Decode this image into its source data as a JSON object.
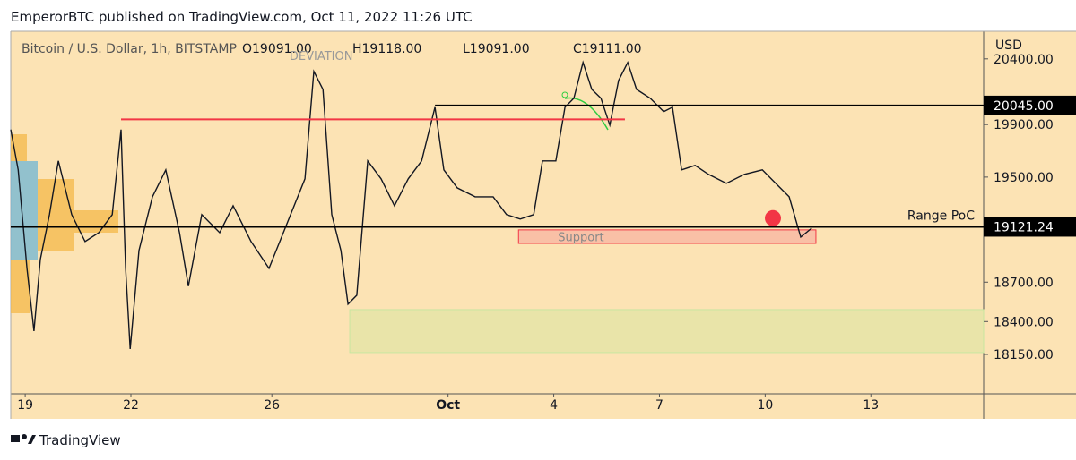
{
  "header": "EmperorBTC published on TradingView.com, Oct 11, 2022 11:26 UTC",
  "footer": "TradingView",
  "chart_data": {
    "type": "line",
    "title": "Bitcoin / U.S. Dollar, 1h, BITSTAMP",
    "ohlc": [
      "O19091.00",
      "H19118.00",
      "L19091.00",
      "C19111.00"
    ],
    "y_axis_label": "USD",
    "color": "#131722",
    "x": [
      -0.41,
      -0.2,
      0.05,
      0.25,
      0.43,
      0.69,
      0.94,
      1.32,
      1.7,
      2.09,
      2.47,
      2.72,
      2.85,
      2.98,
      3.23,
      3.61,
      3.99,
      4.38,
      4.63,
      5.01,
      5.52,
      5.9,
      6.41,
      6.92,
      7.43,
      7.94,
      8.19,
      8.45,
      8.7,
      8.96,
      9.16,
      9.41,
      9.72,
      10.1,
      10.48,
      10.87,
      11.25,
      11.63,
      11.88,
      12.26,
      12.77,
      13.28,
      13.66,
      14.05,
      14.43,
      14.68,
      15.06,
      15.32,
      15.57,
      15.83,
      16.08,
      16.34,
      16.59,
      16.84,
      17.1,
      17.35,
      17.74,
      18.12,
      18.37,
      18.63,
      19.01,
      19.39,
      19.9,
      20.41,
      20.92,
      21.3,
      21.68,
      22.01,
      22.32
    ],
    "values": [
      19862,
      19555,
      18805,
      18328,
      18873,
      19214,
      19623,
      19214,
      19009,
      19077,
      19214,
      19862,
      18805,
      18191,
      18941,
      19350,
      19555,
      19077,
      18669,
      19214,
      19077,
      19282,
      19009,
      18805,
      19146,
      19487,
      20305,
      20168,
      19214,
      18941,
      18532,
      18600,
      19623,
      19487,
      19282,
      19487,
      19623,
      20032,
      19555,
      19418,
      19350,
      19350,
      19214,
      19180,
      19214,
      19623,
      19623,
      20032,
      20100,
      20373,
      20168,
      20100,
      19896,
      20236,
      20373,
      20168,
      20100,
      19998,
      20032,
      19555,
      19589,
      19521,
      19452,
      19521,
      19555,
      19452,
      19350,
      19043,
      19111
    ],
    "xlim": [
      -0.41,
      27.2
    ],
    "ylim": [
      17850,
      20610
    ],
    "xticks": [
      {
        "value": 0,
        "label": "19"
      },
      {
        "value": 3,
        "label": "22"
      },
      {
        "value": 7,
        "label": "26"
      },
      {
        "value": 12,
        "label": "Oct"
      },
      {
        "value": 15,
        "label": "4"
      },
      {
        "value": 18,
        "label": "7"
      },
      {
        "value": 21,
        "label": "10"
      },
      {
        "value": 24,
        "label": "13"
      }
    ],
    "yticks": [
      {
        "value": 20400,
        "label": "20400.00"
      },
      {
        "value": 19900,
        "label": "19900.00"
      },
      {
        "value": 19500,
        "label": "19500.00"
      },
      {
        "value": 18700,
        "label": "18700.00"
      },
      {
        "value": 18400,
        "label": "18400.00"
      },
      {
        "value": 18150,
        "label": "18150.00"
      }
    ],
    "hlines": [
      {
        "value": 20045,
        "label": "20045.00",
        "from": 11.63,
        "color": "#000000"
      },
      {
        "value": 19940,
        "from": 2.72,
        "to": 17.02,
        "color": "#f23645"
      },
      {
        "value": 19121.24,
        "label": "19121.24",
        "name": "Range PoC",
        "from": -0.41,
        "color": "#000000"
      }
    ],
    "zones": [
      {
        "label": "Support",
        "from": 18995,
        "to": 19098,
        "x": [
          14.0,
          22.44
        ],
        "color": "#f7b7a3",
        "border": "#f23645"
      },
      {
        "from": 18164,
        "to": 18491,
        "x": [
          9.21,
          27.2
        ],
        "color": "#e3e3a6",
        "border": "#c8e6a0"
      }
    ],
    "markers": [
      {
        "x": 21.22,
        "y": 19187,
        "color": "#f23645"
      }
    ],
    "annotations": [
      {
        "text": "DEVIATION",
        "x": 8.4,
        "y": 20427
      }
    ]
  }
}
